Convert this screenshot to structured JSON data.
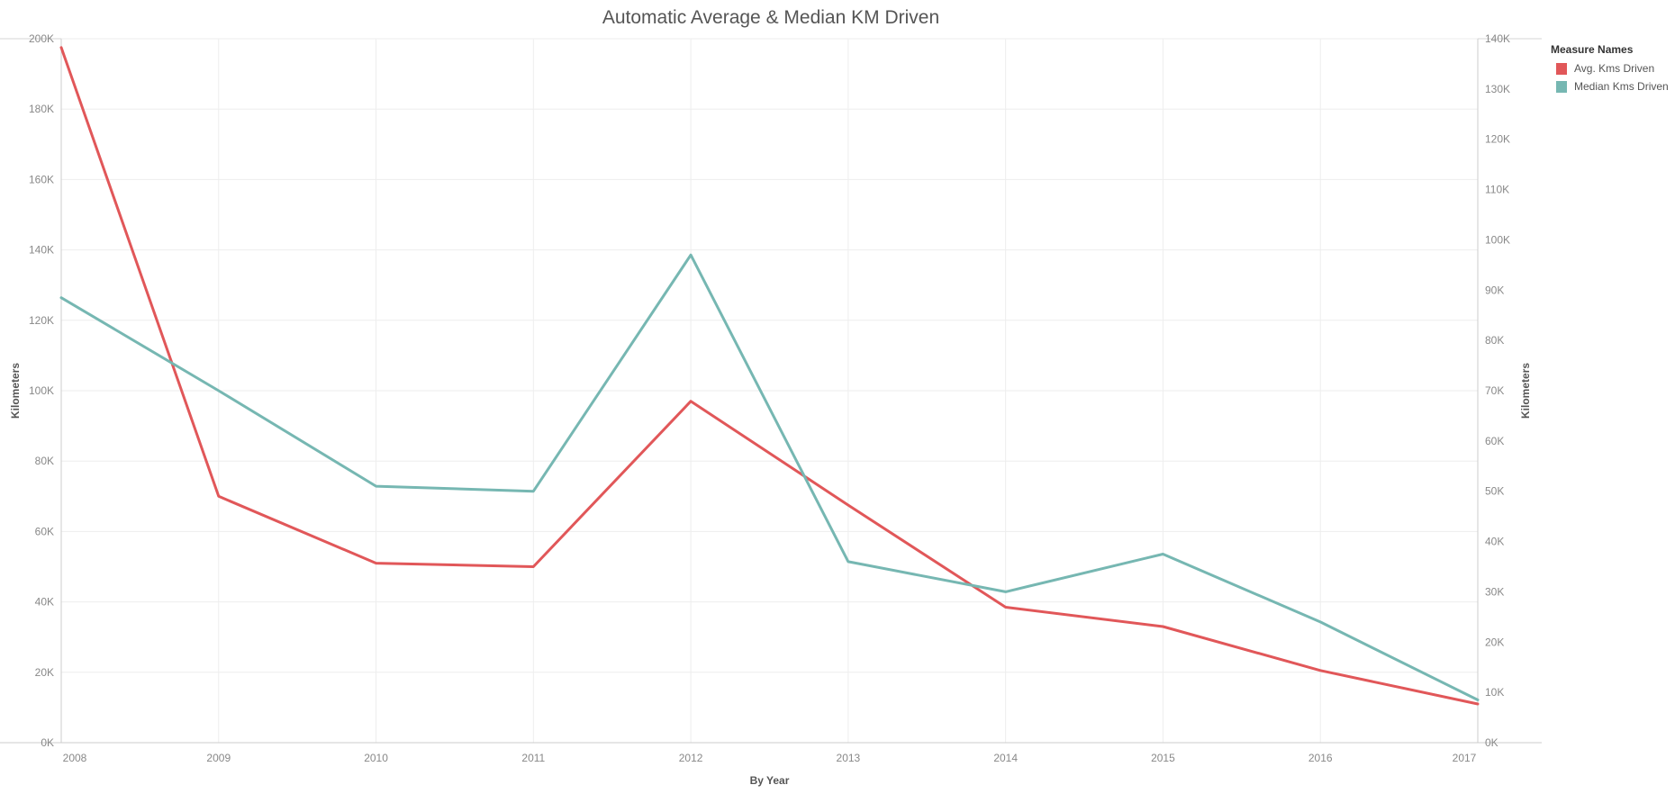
{
  "chart_data": {
    "type": "line",
    "title": "Automatic Average & Median KM Driven",
    "xlabel": "By Year",
    "ylabel_left": "Kilometers",
    "ylabel_right": "Kilometers",
    "categories": [
      "2008",
      "2009",
      "2010",
      "2011",
      "2012",
      "2013",
      "2014",
      "2015",
      "2016",
      "2017"
    ],
    "y_left": {
      "ylim": [
        0,
        200000
      ],
      "ticks": [
        0,
        20000,
        40000,
        60000,
        80000,
        100000,
        120000,
        140000,
        160000,
        180000,
        200000
      ],
      "tick_labels": [
        "0K",
        "20K",
        "40K",
        "60K",
        "80K",
        "100K",
        "120K",
        "140K",
        "160K",
        "180K",
        "200K"
      ]
    },
    "y_right": {
      "ylim": [
        0,
        140000
      ],
      "ticks": [
        0,
        10000,
        20000,
        30000,
        40000,
        50000,
        60000,
        70000,
        80000,
        90000,
        100000,
        110000,
        120000,
        130000,
        140000
      ],
      "tick_labels": [
        "0K",
        "10K",
        "20K",
        "30K",
        "40K",
        "50K",
        "60K",
        "70K",
        "80K",
        "90K",
        "100K",
        "110K",
        "120K",
        "130K",
        "140K"
      ]
    },
    "legend": {
      "title": "Measure Names",
      "position": "top-right"
    },
    "grid": true,
    "series": [
      {
        "name": "Avg. Kms Driven",
        "axis": "left",
        "color": "#E15759",
        "values": [
          197500,
          70000,
          51000,
          50000,
          97000,
          67500,
          38500,
          33000,
          20500,
          11000
        ]
      },
      {
        "name": "Median Kms Driven",
        "axis": "right",
        "color": "#76B7B2",
        "values": [
          88500,
          70000,
          51000,
          50000,
          97000,
          36000,
          30000,
          37500,
          24000,
          8500
        ]
      }
    ]
  }
}
